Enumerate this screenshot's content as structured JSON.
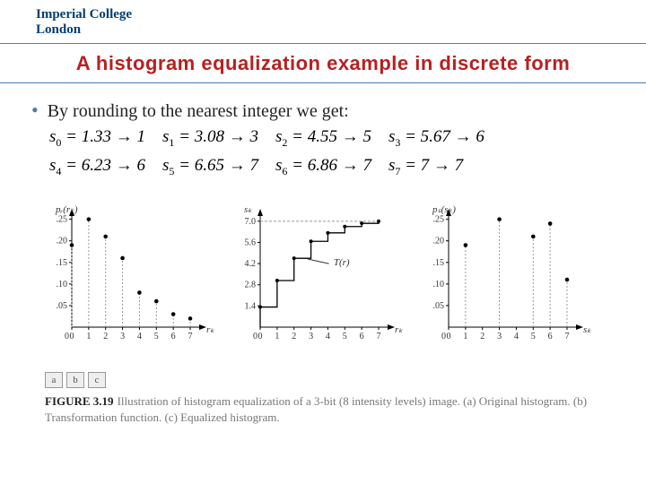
{
  "logo": {
    "line1": "Imperial College",
    "line2": "London"
  },
  "title": "A histogram equalization example in discrete form",
  "lede": "By rounding to the nearest integer we get:",
  "equations": {
    "row1": "s₀ = 1.33 → 1    s₁ = 3.08 → 3    s₂ = 4.55 → 5    s₃ = 5.67 → 6",
    "row2": "s₄ = 6.23 → 6    s₅ = 6.65 → 7    s₆ = 6.86 → 7    s₇ = 7 → 7"
  },
  "figure_a": {
    "type": "stem",
    "title_x": "rₖ",
    "title_y": "pᵣ(rₖ)",
    "x_ticks": [
      0,
      1,
      2,
      3,
      4,
      5,
      6,
      7
    ],
    "y_ticks": [
      0.05,
      0.1,
      0.15,
      0.2,
      0.25
    ],
    "y_labels": [
      ".05",
      ".10",
      ".15",
      ".20",
      ".25"
    ],
    "values": [
      0.19,
      0.25,
      0.21,
      0.16,
      0.08,
      0.06,
      0.03,
      0.02
    ],
    "axis_color": "#000",
    "dash_color": "#999",
    "marker_color": "#000",
    "label_fontsize": 10
  },
  "figure_b": {
    "type": "step",
    "title_x": "rₖ",
    "title_y": "sₖ",
    "x_ticks": [
      0,
      1,
      2,
      3,
      4,
      5,
      6,
      7
    ],
    "y_ticks": [
      1.4,
      2.8,
      4.2,
      5.6,
      7.0
    ],
    "y_labels": [
      "1.4",
      "2.8",
      "4.2",
      "5.6",
      "7.0"
    ],
    "s_values": [
      1.33,
      3.08,
      4.55,
      5.67,
      6.23,
      6.65,
      6.86,
      7.0
    ],
    "annotation": "T(r)",
    "axis_color": "#000",
    "dash_color": "#999",
    "line_color": "#000",
    "label_fontsize": 10
  },
  "figure_c": {
    "type": "stem",
    "title_x": "sₖ",
    "title_y": "pₛ(sₖ)",
    "x_ticks": [
      0,
      1,
      2,
      3,
      4,
      5,
      6,
      7
    ],
    "y_ticks": [
      0.05,
      0.1,
      0.15,
      0.2,
      0.25
    ],
    "y_labels": [
      ".05",
      ".10",
      ".15",
      ".20",
      ".25"
    ],
    "points": [
      [
        1,
        0.19
      ],
      [
        3,
        0.25
      ],
      [
        5,
        0.21
      ],
      [
        6,
        0.24
      ],
      [
        7,
        0.11
      ]
    ],
    "axis_color": "#000",
    "dash_color": "#999",
    "marker_color": "#000",
    "label_fontsize": 10
  },
  "caption": {
    "abc": [
      "a",
      "b",
      "c"
    ],
    "label": "FIGURE 3.19",
    "text": "Illustration of histogram equalization of a 3-bit (8 intensity levels) image. (a) Original histogram. (b) Transformation function. (c) Equalized histogram."
  },
  "colors": {
    "title": "#b82020",
    "logo": "#003e74",
    "caption_grey": "#777",
    "hr2": "#4a7ea8"
  }
}
